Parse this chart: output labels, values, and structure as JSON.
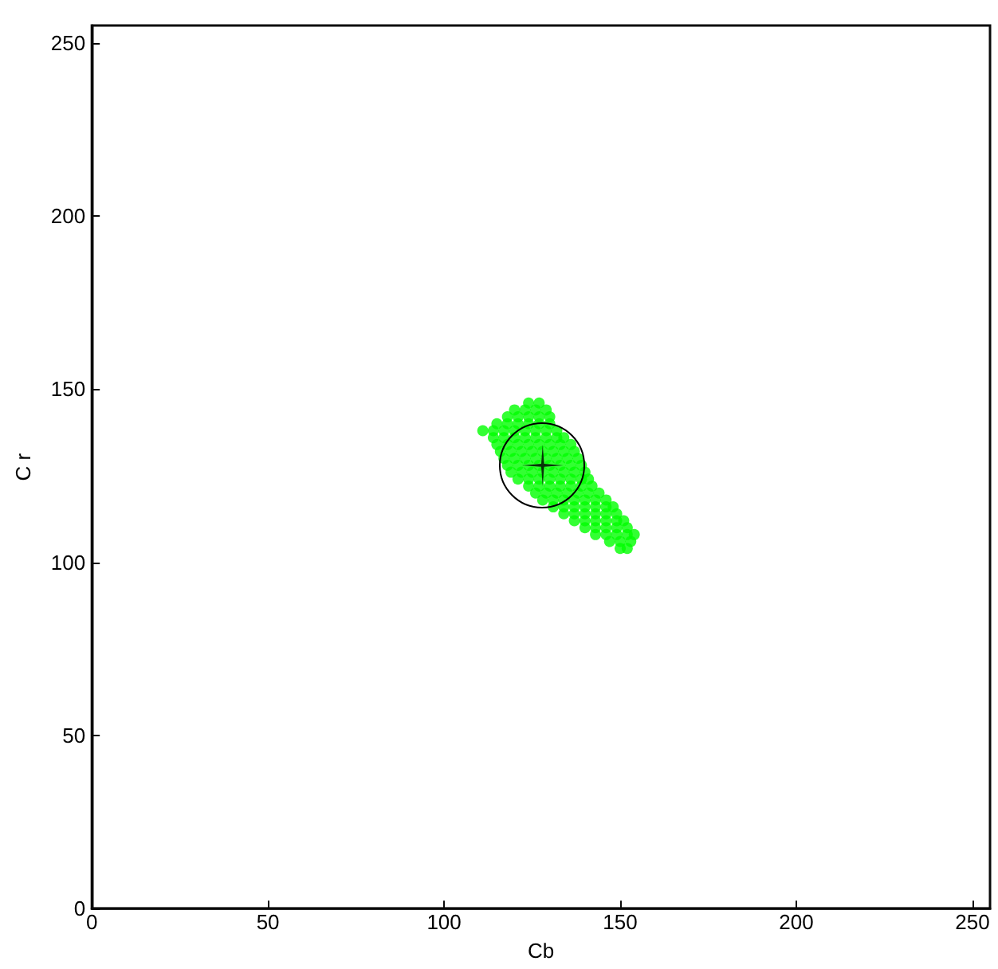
{
  "chart_data": {
    "type": "scatter",
    "xlabel": "Cb",
    "ylabel": "C r",
    "xlim": [
      0,
      255
    ],
    "ylim": [
      0,
      255
    ],
    "xticks": [
      0,
      50,
      100,
      150,
      200,
      250
    ],
    "yticks": [
      0,
      50,
      100,
      150,
      200,
      250
    ],
    "grid": false,
    "series": [
      {
        "color": "#00ff00",
        "marker": "circle",
        "x": [
          124,
          127,
          120,
          123,
          126,
          129,
          118,
          121,
          124,
          127,
          130,
          115,
          118,
          121,
          124,
          127,
          130,
          111,
          114,
          117,
          120,
          123,
          126,
          129,
          132,
          114,
          117,
          120,
          123,
          126,
          129,
          132,
          134,
          115,
          118,
          121,
          124,
          127,
          130,
          133,
          136,
          116,
          119,
          122,
          125,
          128,
          131,
          134,
          137,
          117,
          120,
          123,
          126,
          129,
          132,
          135,
          138,
          118,
          121,
          124,
          127,
          130,
          133,
          136,
          139,
          119,
          122,
          125,
          128,
          131,
          134,
          137,
          140,
          121,
          124,
          127,
          130,
          133,
          136,
          139,
          141,
          124,
          127,
          130,
          133,
          136,
          139,
          142,
          126,
          129,
          132,
          135,
          138,
          141,
          144,
          128,
          131,
          134,
          137,
          140,
          143,
          146,
          131,
          134,
          137,
          140,
          143,
          146,
          148,
          134,
          137,
          140,
          143,
          146,
          149,
          137,
          140,
          143,
          146,
          149,
          151,
          140,
          143,
          146,
          149,
          152,
          143,
          146,
          149,
          152,
          154,
          147,
          150,
          153,
          150,
          152
        ],
        "values": [
          146,
          146,
          144,
          144,
          144,
          144,
          142,
          142,
          142,
          142,
          142,
          140,
          140,
          140,
          140,
          140,
          140,
          138,
          138,
          138,
          138,
          138,
          138,
          138,
          138,
          136,
          136,
          136,
          136,
          136,
          136,
          136,
          136,
          134,
          134,
          134,
          134,
          134,
          134,
          134,
          134,
          132,
          132,
          132,
          132,
          132,
          132,
          132,
          132,
          130,
          130,
          130,
          130,
          130,
          130,
          130,
          130,
          128,
          128,
          128,
          128,
          128,
          128,
          128,
          128,
          126,
          126,
          126,
          126,
          126,
          126,
          126,
          126,
          124,
          124,
          124,
          124,
          124,
          124,
          124,
          124,
          122,
          122,
          122,
          122,
          122,
          122,
          122,
          120,
          120,
          120,
          120,
          120,
          120,
          120,
          118,
          118,
          118,
          118,
          118,
          118,
          118,
          116,
          116,
          116,
          116,
          116,
          116,
          116,
          114,
          114,
          114,
          114,
          114,
          114,
          112,
          112,
          112,
          112,
          112,
          112,
          110,
          110,
          110,
          110,
          110,
          108,
          108,
          108,
          108,
          108,
          106,
          106,
          106,
          104,
          104
        ]
      },
      {
        "color": "#000000",
        "marker": "cross",
        "x": [
          128
        ],
        "values": [
          128
        ]
      }
    ]
  }
}
